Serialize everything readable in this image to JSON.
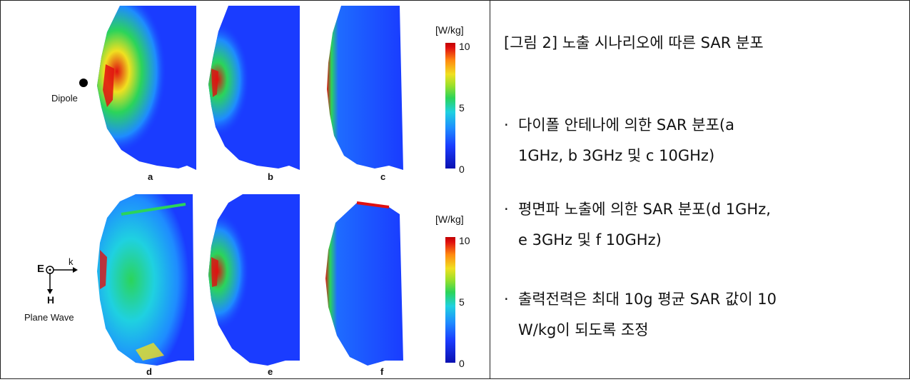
{
  "figure": {
    "colorbar": {
      "unit": "[W/kg]",
      "ticks": [
        "10",
        "5",
        "0"
      ]
    },
    "panels_top": [
      "a",
      "b",
      "c"
    ],
    "panels_bottom": [
      "d",
      "e",
      "f"
    ],
    "source_top": "Dipole",
    "source_bottom": {
      "e_label": "E",
      "k_label": "k",
      "h_label": "H",
      "name": "Plane Wave"
    },
    "colors": {
      "low": "#0a2ad0",
      "mid": "#2bd45a",
      "high": "#e01010"
    }
  },
  "caption": {
    "title": "[그림  2]  노출 시나리오에 따른 SAR 분포",
    "bullets": [
      {
        "line1": "다이폴  안테나에  의한  SAR  분포(a",
        "line2": "1GHz, b 3GHz 및 c 10GHz)"
      },
      {
        "line1": "평면파  노출에  의한  SAR  분포(d  1GHz,",
        "line2": "e 3GHz 및 f 10GHz)"
      },
      {
        "line1": "출력전력은  최대  10g  평균  SAR  값이  10",
        "line2": "W/kg이 되도록 조정"
      }
    ],
    "bullet_mark": "·"
  }
}
